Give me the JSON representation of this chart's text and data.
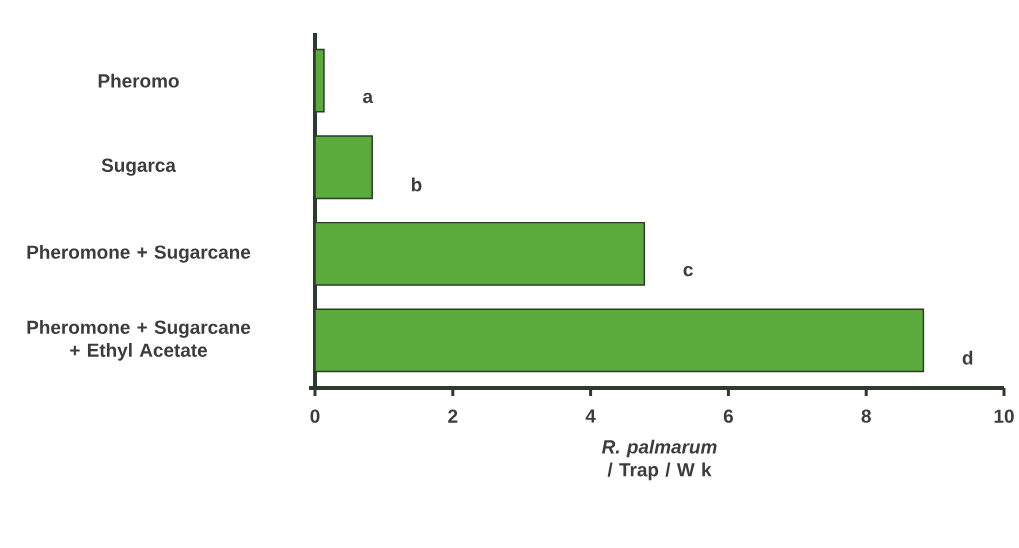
{
  "chart_data": {
    "type": "bar",
    "orientation": "horizontal",
    "xlabel": "*R. palmarum* / Trap / W k",
    "categories": [
      "Pheromo",
      "Sugarca",
      "Pheromone + Sugarcane",
      "Pheromone + Sugarcane + Ethyl Acetate"
    ],
    "values": [
      0.13,
      0.83,
      4.78,
      8.83
    ],
    "color": "#5aab3c",
    "xlim": [
      0,
      10
    ],
    "xticks": [
      0,
      2,
      4,
      6,
      8,
      10
    ],
    "annotations": [
      "a",
      "b",
      "c",
      "d"
    ]
  }
}
